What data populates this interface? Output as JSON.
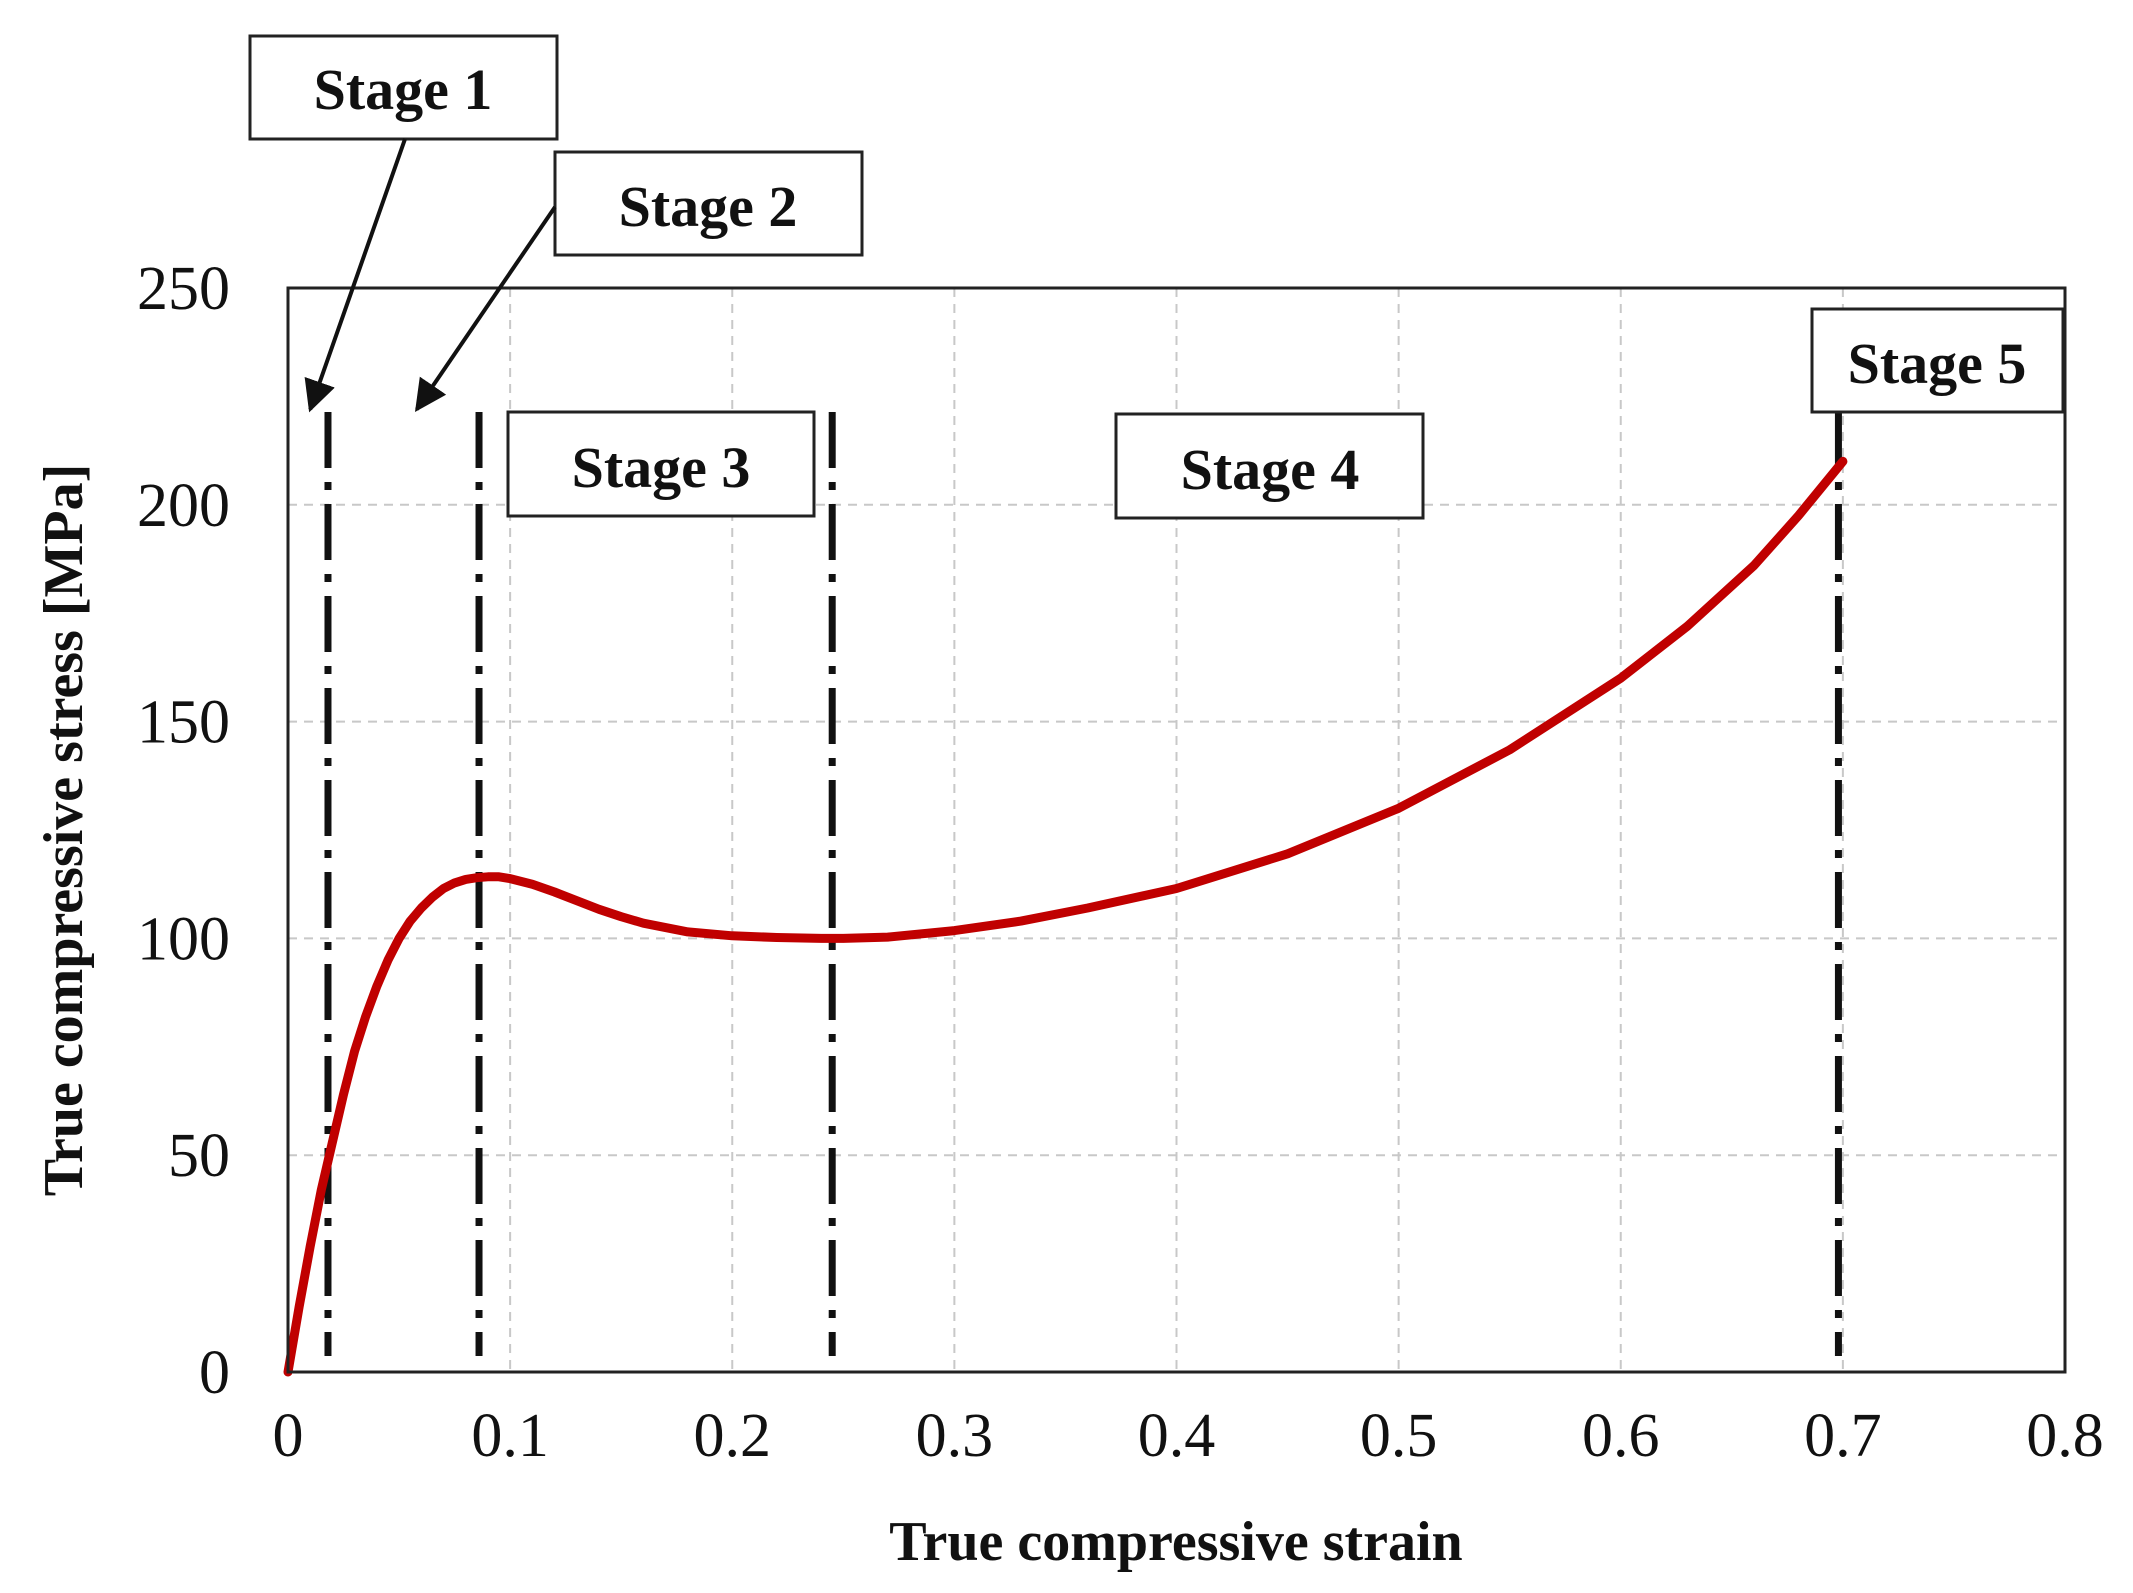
{
  "chart_data": {
    "type": "line",
    "xlabel": "True compressive strain",
    "ylabel": "True compressive stress [MPa]",
    "xlim": [
      0,
      0.8
    ],
    "ylim": [
      0,
      250
    ],
    "x_ticks": [
      "0",
      "0.1",
      "0.2",
      "0.3",
      "0.4",
      "0.5",
      "0.6",
      "0.7",
      "0.8"
    ],
    "y_ticks": [
      "0",
      "50",
      "100",
      "150",
      "200",
      "250"
    ],
    "grid": true,
    "series": [
      {
        "color": "#c00000",
        "x": [
          0,
          0.005,
          0.01,
          0.015,
          0.02,
          0.025,
          0.03,
          0.035,
          0.04,
          0.045,
          0.05,
          0.055,
          0.06,
          0.065,
          0.07,
          0.075,
          0.08,
          0.085,
          0.09,
          0.095,
          0.1,
          0.11,
          0.12,
          0.13,
          0.14,
          0.15,
          0.16,
          0.18,
          0.2,
          0.22,
          0.24,
          0.25,
          0.27,
          0.3,
          0.33,
          0.36,
          0.4,
          0.45,
          0.5,
          0.55,
          0.6,
          0.63,
          0.66,
          0.68,
          0.7
        ],
        "y": [
          0,
          15,
          29,
          42,
          53,
          64,
          74,
          82,
          89,
          95,
          100,
          104,
          107,
          109.5,
          111.5,
          112.8,
          113.6,
          114,
          114.2,
          114.2,
          113.8,
          112.5,
          110.7,
          108.7,
          106.7,
          105,
          103.5,
          101.5,
          100.6,
          100.2,
          100,
          100,
          100.3,
          101.8,
          104,
          107,
          111.5,
          119.5,
          130,
          143.5,
          160,
          172,
          186,
          197.5,
          210
        ]
      }
    ],
    "boundaries": [
      0.018,
      0.086,
      0.245,
      0.698
    ],
    "annotations": [
      {
        "text": "Stage 1",
        "arrow_to": [
          0.01,
          222
        ]
      },
      {
        "text": "Stage 2",
        "arrow_to": [
          0.058,
          222
        ]
      },
      {
        "text": "Stage 3"
      },
      {
        "text": "Stage 4"
      },
      {
        "text": "Stage 5"
      }
    ]
  }
}
